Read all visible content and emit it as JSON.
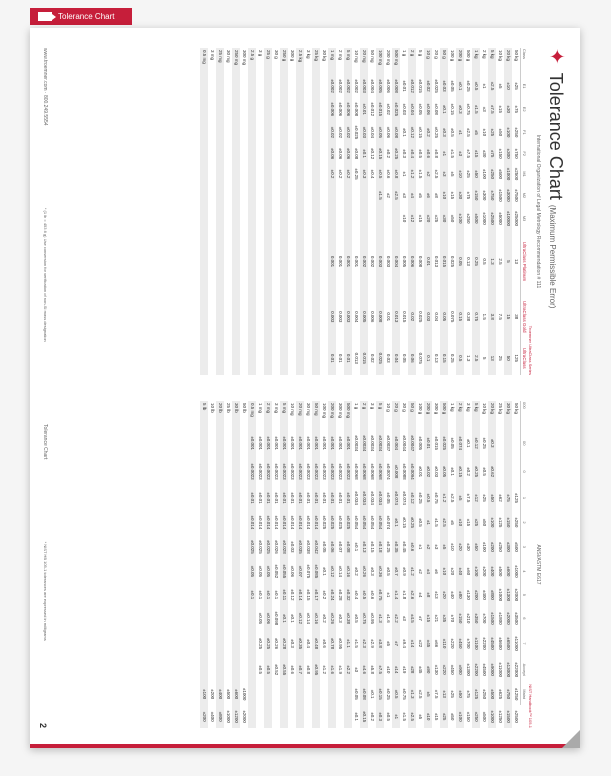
{
  "tab_label": "Tolerance Chart",
  "title_main": "Tolerance Chart",
  "title_sub": "(Maximum Permissible Error)",
  "left_table": {
    "header_top": "International Organization of  Legal Metrology Recommendation # 111",
    "header_right": "Troemner UltraClass Series",
    "cols": [
      "Class",
      "E1",
      "E2",
      "F1",
      "F2",
      "M1",
      "M2",
      "M3",
      "UltraClass Platinum",
      "UltraClass Gold",
      "UltraClass"
    ],
    "rows": [
      [
        "50 kg",
        "±25",
        "±75",
        "±250",
        "±750",
        "±2500",
        "±7500",
        "±25000",
        "13",
        "38",
        "125"
      ],
      [
        "20 kg",
        "±10",
        "±30",
        "±100",
        "±300",
        "±1000",
        "±3000",
        "±10000",
        "5",
        "15",
        "50"
      ],
      [
        "10 kg",
        "±5",
        "±15",
        "±50",
        "±150",
        "±500",
        "±1500",
        "±5000",
        "2.5",
        "7.5",
        "25"
      ],
      [
        "5 kg",
        "±2.5",
        "±7.5",
        "±25",
        "±75",
        "±250",
        "±750",
        "±2500",
        "1.3",
        "3.8",
        "13"
      ],
      [
        "2 kg",
        "±1",
        "±3",
        "±10",
        "±30",
        "±100",
        "±300",
        "±1000",
        "0.5",
        "1.5",
        "5"
      ],
      [
        "1 kg",
        "±0.5",
        "±1.5",
        "±5",
        "±15",
        "±50",
        "±150",
        "±500",
        "0.25",
        "0.75",
        "2.5"
      ],
      [
        "500 g",
        "±0.25",
        "±0.75",
        "±2.5",
        "±7.5",
        "±25",
        "±75",
        "±250",
        "0.13",
        "0.38",
        "1.3"
      ],
      [
        "200 g",
        "±0.1",
        "±0.3",
        "±1",
        "±3",
        "±10",
        "±30",
        "±100",
        "0.05",
        "0.15",
        "0.5"
      ],
      [
        "100 g",
        "±0.05",
        "±0.15",
        "±0.5",
        "±1.5",
        "±5",
        "±15",
        "±50",
        "0.025",
        "0.075",
        "0.25"
      ],
      [
        "50 g",
        "±0.03",
        "±0.1",
        "±0.3",
        "±1",
        "±3",
        "±10",
        "±30",
        "0.015",
        "0.05",
        "0.15"
      ],
      [
        "20 g",
        "±0.025",
        "±0.08",
        "±0.25",
        "±0.8",
        "±2.5",
        "±8",
        "±25",
        "0.013",
        "0.04",
        "0.13"
      ],
      [
        "10 g",
        "±0.02",
        "±0.06",
        "±0.2",
        "±0.6",
        "±2",
        "±6",
        "±20",
        "0.01",
        "0.03",
        "0.1"
      ],
      [
        "5 g",
        "±0.015",
        "±0.05",
        "±0.15",
        "±0.5",
        "±1.5",
        "±5",
        "±15",
        "0.008",
        "0.025",
        "0.075"
      ],
      [
        "2 g",
        "±0.012",
        "±0.04",
        "±0.12",
        "±0.4",
        "±1.2",
        "±4",
        "±12",
        "0.006",
        "0.02",
        "0.06"
      ],
      [
        "1 g",
        "±0.01",
        "±0.03",
        "±0.1",
        "±0.3",
        "±1",
        "±3",
        "±10",
        "0.005",
        "0.015",
        "0.05"
      ],
      [
        "500 mg",
        "±0.008",
        "±0.025",
        "±0.08",
        "±0.25",
        "±0.8",
        "±2.5",
        "",
        "0.004",
        "0.013",
        "0.04"
      ],
      [
        "200 mg",
        "±0.006",
        "±0.02",
        "±0.06",
        "±0.2",
        "±0.6",
        "±2",
        "",
        "0.003",
        "0.01",
        "0.03"
      ],
      [
        "100 mg",
        "±0.005",
        "±0.015",
        "±0.05",
        "±0.15",
        "±0.5",
        "±1.5",
        "",
        "0.003",
        "0.008",
        "0.025"
      ],
      [
        "50 mg",
        "±0.004",
        "±0.012",
        "±0.04",
        "±0.12",
        "±0.4",
        "",
        "",
        "0.002",
        "0.006",
        "0.02"
      ],
      [
        "20 mg",
        "±0.003",
        "±0.01",
        "±0.03",
        "±0.1",
        "±0.3",
        "",
        "",
        "0.002",
        "0.005",
        "0.015"
      ],
      [
        "10 mg",
        "±0.002",
        "±0.008",
        "±0.025",
        "±0.08",
        "±0.25",
        "",
        "",
        "0.001",
        "0.004",
        "0.013"
      ],
      [
        "5 mg",
        "±0.002",
        "±0.006",
        "±0.02",
        "±0.06",
        "±0.2",
        "",
        "",
        "0.001",
        "0.003",
        "0.01"
      ],
      [
        "2 mg",
        "±0.002",
        "±0.006",
        "±0.02",
        "±0.06",
        "±0.2",
        "",
        "",
        "0.001",
        "0.003",
        "0.01"
      ],
      [
        "1 mg",
        "±0.002",
        "±0.006",
        "±0.02",
        "±0.06",
        "±0.2",
        "",
        "",
        "0.001",
        "0.003",
        "0.01"
      ],
      [
        "30 kg",
        "",
        "",
        "",
        "",
        "",
        "",
        "",
        "",
        "",
        ""
      ],
      [
        "25 kg",
        "",
        "",
        "",
        "",
        "",
        "",
        "",
        "",
        "",
        ""
      ],
      [
        "3 kg",
        "",
        "",
        "",
        "",
        "",
        "",
        "",
        "",
        "",
        ""
      ],
      [
        "2.5 kg",
        "",
        "",
        "",
        "",
        "",
        "",
        "",
        "",
        "",
        ""
      ],
      [
        "300 g",
        "",
        "",
        "",
        "",
        "",
        "",
        "",
        "",
        "",
        ""
      ],
      [
        "250 g",
        "",
        "",
        "",
        "",
        "",
        "",
        "",
        "",
        "",
        ""
      ],
      [
        "30 g",
        "",
        "",
        "",
        "",
        "",
        "",
        "",
        "",
        "",
        ""
      ],
      [
        "25 g",
        "",
        "",
        "",
        "",
        "",
        "",
        "",
        "",
        "",
        ""
      ],
      [
        "3 g",
        "",
        "",
        "",
        "",
        "",
        "",
        "",
        "",
        "",
        ""
      ],
      [
        "2.5 g",
        "",
        "",
        "",
        "",
        "",
        "",
        "",
        "",
        "",
        ""
      ],
      [
        "300 mg",
        "",
        "",
        "",
        "",
        "",
        "",
        "",
        "",
        "",
        ""
      ],
      [
        "250 mg",
        "",
        "",
        "",
        "",
        "",
        "",
        "",
        "",
        "",
        ""
      ],
      [
        "30 mg",
        "",
        "",
        "",
        "",
        "",
        "",
        "",
        "",
        "",
        ""
      ],
      [
        "25 mg",
        "",
        "",
        "",
        "",
        "",
        "",
        "",
        "",
        "",
        ""
      ],
      [
        "3 mg",
        "",
        "",
        "",
        "",
        "",
        "",
        "",
        "",
        "",
        ""
      ],
      [
        "0.5 mg",
        "",
        "",
        "",
        "",
        "",
        "",
        "",
        "",
        "",
        ""
      ]
    ]
  },
  "right_table": {
    "header_top": "ANSI/ASTM E617",
    "header_right": "NIST Handbook™ 105-1",
    "cols": [
      "000",
      "00",
      "0",
      "1",
      "2",
      "3",
      "4",
      "5",
      "6",
      "7",
      "Accept",
      "Maint"
    ],
    "rows": [
      [
        "50 kg",
        "",
        "",
        "±125",
        "±250",
        "±500",
        "±1000",
        "±2000",
        "±3500",
        "±11000",
        "±22000",
        "±1250",
        "±2500"
      ],
      [
        "30 kg",
        "",
        "",
        "±75",
        "±150",
        "±300",
        "±600",
        "±1300",
        "±2000",
        "±6500",
        "±13000",
        "±750",
        "±1500"
      ],
      [
        "25 kg",
        "",
        "",
        "±62",
        "±125",
        "±250",
        "±500",
        "±1000",
        "±1800",
        "±5600",
        "±11000",
        "±625",
        "±1250"
      ],
      [
        "20 kg",
        "±0.3",
        "±0.62",
        "±50",
        "±100",
        "±200",
        "±400",
        "±800",
        "±1500",
        "±4500",
        "±9000",
        "±500",
        "±1000"
      ],
      [
        "10 kg",
        "±0.25",
        "±0.5",
        "±25",
        "±50",
        "±100",
        "±200",
        "±400",
        "±700",
        "±2200",
        "±4500",
        "±250",
        "±500"
      ],
      [
        "5 kg",
        "±0.12",
        "±0.25",
        "±12",
        "±25",
        "±50",
        "±100",
        "±200",
        "±350",
        "±1100",
        "±2200",
        "±125",
        "±250"
      ],
      [
        "3 kg",
        "±0.1",
        "±0.2",
        "±7.5",
        "±15",
        "±30",
        "±60",
        "±130",
        "±210",
        "±700",
        "±1300",
        "±75",
        "±150"
      ],
      [
        "2 kg",
        "±0.074",
        "±0.15",
        "±5",
        "±10",
        "±20",
        "±40",
        "±80",
        "±150",
        "±450",
        "±900",
        "±50",
        "±100"
      ],
      [
        "1 kg",
        "±0.05",
        "±0.1",
        "±2.5",
        "±5",
        "±10",
        "±20",
        "±40",
        "±70",
        "±220",
        "±450",
        "±25",
        "±50"
      ],
      [
        "500 g",
        "±0.025",
        "±0.05",
        "±1.2",
        "±2.5",
        "±5",
        "±10",
        "±20",
        "±35",
        "±110",
        "±220",
        "±13",
        "±25"
      ],
      [
        "300 g",
        "±0.015",
        "±0.03",
        "±0.75",
        "±1.5",
        "±3",
        "±6",
        "±13",
        "±21",
        "±66",
        "±130",
        "±7.5",
        "±15"
      ],
      [
        "200 g",
        "±0.01",
        "±0.02",
        "±0.5",
        "±1",
        "±2",
        "±4",
        "±8",
        "±15",
        "±45",
        "±90",
        "±5",
        "±10"
      ],
      [
        "100 g",
        "±0.005",
        "±0.01",
        "±0.25",
        "±0.5",
        "±1",
        "±2",
        "±4",
        "±7",
        "±22",
        "±45",
        "±2.5",
        "±5"
      ],
      [
        "50 g",
        "±0.0047",
        "±0.0094",
        "±0.12",
        "±0.25",
        "±0.6",
        "±1.2",
        "±2.6",
        "±4.5",
        "±14",
        "±28",
        "±1.3",
        "±2.5"
      ],
      [
        "30 g",
        "±0.0044",
        "±0.0088",
        "±0.074",
        "±0.15",
        "±0.45",
        "±0.9",
        "±1.8",
        "±3",
        "±9.4",
        "±19",
        "±0.75",
        "±1.5"
      ],
      [
        "20 g",
        "±0.004",
        "±0.008",
        "±0.074",
        "±0.1",
        "±0.35",
        "±0.7",
        "±1.4",
        "±2.2",
        "±7",
        "±14",
        "±0.5",
        "±1"
      ],
      [
        "10 g",
        "±0.0037",
        "±0.0074",
        "±0.05",
        "±0.074",
        "±0.25",
        "±0.5",
        "±1",
        "±1.6",
        "±5",
        "±10",
        "±0.25",
        "±0.5"
      ],
      [
        "5 g",
        "±0.0034",
        "±0.0068",
        "±0.034",
        "±0.054",
        "±0.18",
        "±0.36",
        "±0.75",
        "±1.3",
        "±3.8",
        "±7.5",
        "±0.15",
        "±0.3"
      ],
      [
        "3 g",
        "±0.0034",
        "±0.0068",
        "±0.034",
        "±0.054",
        "±0.15",
        "±0.3",
        "±0.6",
        "±0.95",
        "±2.9",
        "±5.8",
        "±0.1",
        "±0.2"
      ],
      [
        "2 g",
        "±0.0034",
        "±0.0068",
        "±0.034",
        "±0.054",
        "±0.13",
        "±0.26",
        "±0.5",
        "±0.75",
        "±2.3",
        "±4.6",
        "±0.08",
        "±0.15"
      ],
      [
        "1 g",
        "±0.0034",
        "±0.0068",
        "±0.034",
        "±0.054",
        "±0.1",
        "±0.2",
        "±0.4",
        "±0.5",
        "±1.5",
        "±3",
        "±0.05",
        "±0.1"
      ],
      [
        "500 mg",
        "±0.001",
        "±0.0023",
        "±0.01",
        "±0.025",
        "±0.08",
        "±0.16",
        "±0.32",
        "±0.38",
        "±1.1",
        "±2.2",
        "",
        ""
      ],
      [
        "300 mg",
        "±0.001",
        "±0.0023",
        "±0.01",
        "±0.025",
        "±0.07",
        "±0.14",
        "±0.28",
        "±0.3",
        "±0.95",
        "±1.9",
        "",
        ""
      ],
      [
        "200 mg",
        "±0.001",
        "±0.0023",
        "±0.01",
        "±0.025",
        "±0.06",
        "±0.12",
        "±0.24",
        "±0.26",
        "±0.78",
        "±1.6",
        "",
        ""
      ],
      [
        "100 mg",
        "±0.001",
        "±0.0023",
        "±0.01",
        "±0.025",
        "±0.05",
        "±0.1",
        "±0.2",
        "±0.2",
        "±0.6",
        "±1.2",
        "",
        ""
      ],
      [
        "50 mg",
        "±0.001",
        "±0.0023",
        "±0.01",
        "±0.014",
        "±0.042",
        "±0.085",
        "±0.17",
        "±0.16",
        "±0.48",
        "±0.95",
        "",
        ""
      ],
      [
        "30 mg",
        "±0.001",
        "±0.0023",
        "±0.01",
        "±0.014",
        "±0.038",
        "±0.075",
        "±0.15",
        "±0.14",
        "±0.4",
        "±0.8",
        "",
        ""
      ],
      [
        "20 mg",
        "±0.001",
        "±0.0023",
        "±0.01",
        "±0.014",
        "±0.035",
        "±0.07",
        "±0.14",
        "±0.12",
        "±0.35",
        "±0.7",
        "",
        ""
      ],
      [
        "10 mg",
        "±0.001",
        "±0.0023",
        "±0.01",
        "±0.014",
        "±0.03",
        "±0.06",
        "±0.12",
        "±0.1",
        "±0.3",
        "±0.6",
        "",
        ""
      ],
      [
        "5 mg",
        "±0.001",
        "±0.0023",
        "±0.01",
        "±0.014",
        "±0.028",
        "±0.055",
        "±0.11",
        "±0.1",
        "±0.28",
        "±0.55",
        "",
        ""
      ],
      [
        "3 mg",
        "±0.001",
        "±0.0023",
        "±0.01",
        "±0.014",
        "±0.026",
        "±0.052",
        "±0.1",
        "±0.098",
        "±0.26",
        "±0.52",
        "",
        ""
      ],
      [
        "2 mg",
        "±0.001",
        "±0.0023",
        "±0.01",
        "±0.014",
        "±0.025",
        "±0.05",
        "±0.1",
        "±0.06",
        "±0.25",
        "±0.5",
        "",
        ""
      ],
      [
        "1 mg",
        "±0.001",
        "±0.0023",
        "±0.01",
        "±0.014",
        "±0.025",
        "±0.05",
        "±0.1",
        "±0.05",
        "±0.25",
        "±0.5",
        "",
        ""
      ],
      [
        "0.5 mg",
        "±0.001",
        "±0.0023",
        "±0.01",
        "±0.014",
        "±0.025",
        "±0.05",
        "±0.1",
        "",
        "",
        "",
        "",
        ""
      ],
      [
        "50 lb",
        "",
        "",
        "",
        "",
        "",
        "",
        "",
        "",
        "",
        "",
        "±1000",
        "±2000"
      ],
      [
        "30 lb",
        "",
        "",
        "",
        "",
        "",
        "",
        "",
        "",
        "",
        "",
        "±600",
        "±1200"
      ],
      [
        "25 lb",
        "",
        "",
        "",
        "",
        "",
        "",
        "",
        "",
        "",
        "",
        "±500",
        "±1000"
      ],
      [
        "20 lb",
        "",
        "",
        "",
        "",
        "",
        "",
        "",
        "",
        "",
        "",
        "±400",
        "±800"
      ],
      [
        "10 lb",
        "",
        "",
        "",
        "",
        "",
        "",
        "",
        "",
        "",
        "",
        "±200",
        "±400"
      ],
      [
        "5 lb",
        "",
        "",
        "",
        "",
        "",
        "",
        "",
        "",
        "",
        "",
        "±100",
        "±200"
      ]
    ]
  },
  "footer_left": "www.troemner.com · 800.249.5554",
  "footer_mid": "* (1 lb = 453.6 g) Use conversion for verification of non-SI mass designation",
  "footer_right_label": "Tolerance Chart",
  "footer_right_note": "* NIST HB 105-1 tolerances are expressed in milligrams",
  "page_number": "2",
  "colors": {
    "brand": "#c61e3a",
    "row_alt": "#ececec",
    "text": "#333",
    "muted": "#666"
  }
}
